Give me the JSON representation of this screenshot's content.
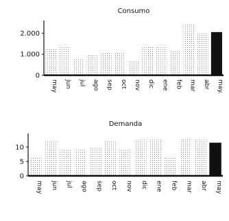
{
  "chart_data": [
    {
      "type": "bar",
      "title": "Consumo",
      "categories": [
        "may",
        "jun",
        "jul",
        "ago",
        "sep",
        "oct",
        "nov",
        "dic",
        "ene",
        "feb",
        "mar",
        "abr",
        "may."
      ],
      "values": [
        1300,
        1400,
        800,
        1000,
        1100,
        1100,
        700,
        1400,
        1400,
        1150,
        2400,
        2000,
        2050
      ],
      "ylim": [
        0,
        2500
      ],
      "yticks": [
        "0",
        "1.000",
        "2.000"
      ],
      "ytick_values": [
        0,
        1000,
        2000
      ],
      "grid": false,
      "style": {
        "bar": "dotted",
        "last_bar": "solid",
        "color": "#111111"
      }
    },
    {
      "type": "bar",
      "title": "Demanda",
      "categories": [
        "may",
        "jun",
        "jul",
        "ago",
        "sep",
        "oct",
        "nov",
        "dic",
        "ene",
        "feb",
        "mar",
        "abr",
        "may"
      ],
      "values": [
        6.5,
        12,
        9,
        9,
        10,
        12,
        9,
        12.5,
        12.5,
        6.5,
        13,
        12.5,
        11.5
      ],
      "ylim": [
        0,
        14
      ],
      "yticks": [
        "0",
        "5",
        "10"
      ],
      "ytick_values": [
        0,
        5,
        10
      ],
      "grid": false,
      "style": {
        "bar": "dotted",
        "last_bar": "solid",
        "color": "#111111"
      }
    }
  ]
}
